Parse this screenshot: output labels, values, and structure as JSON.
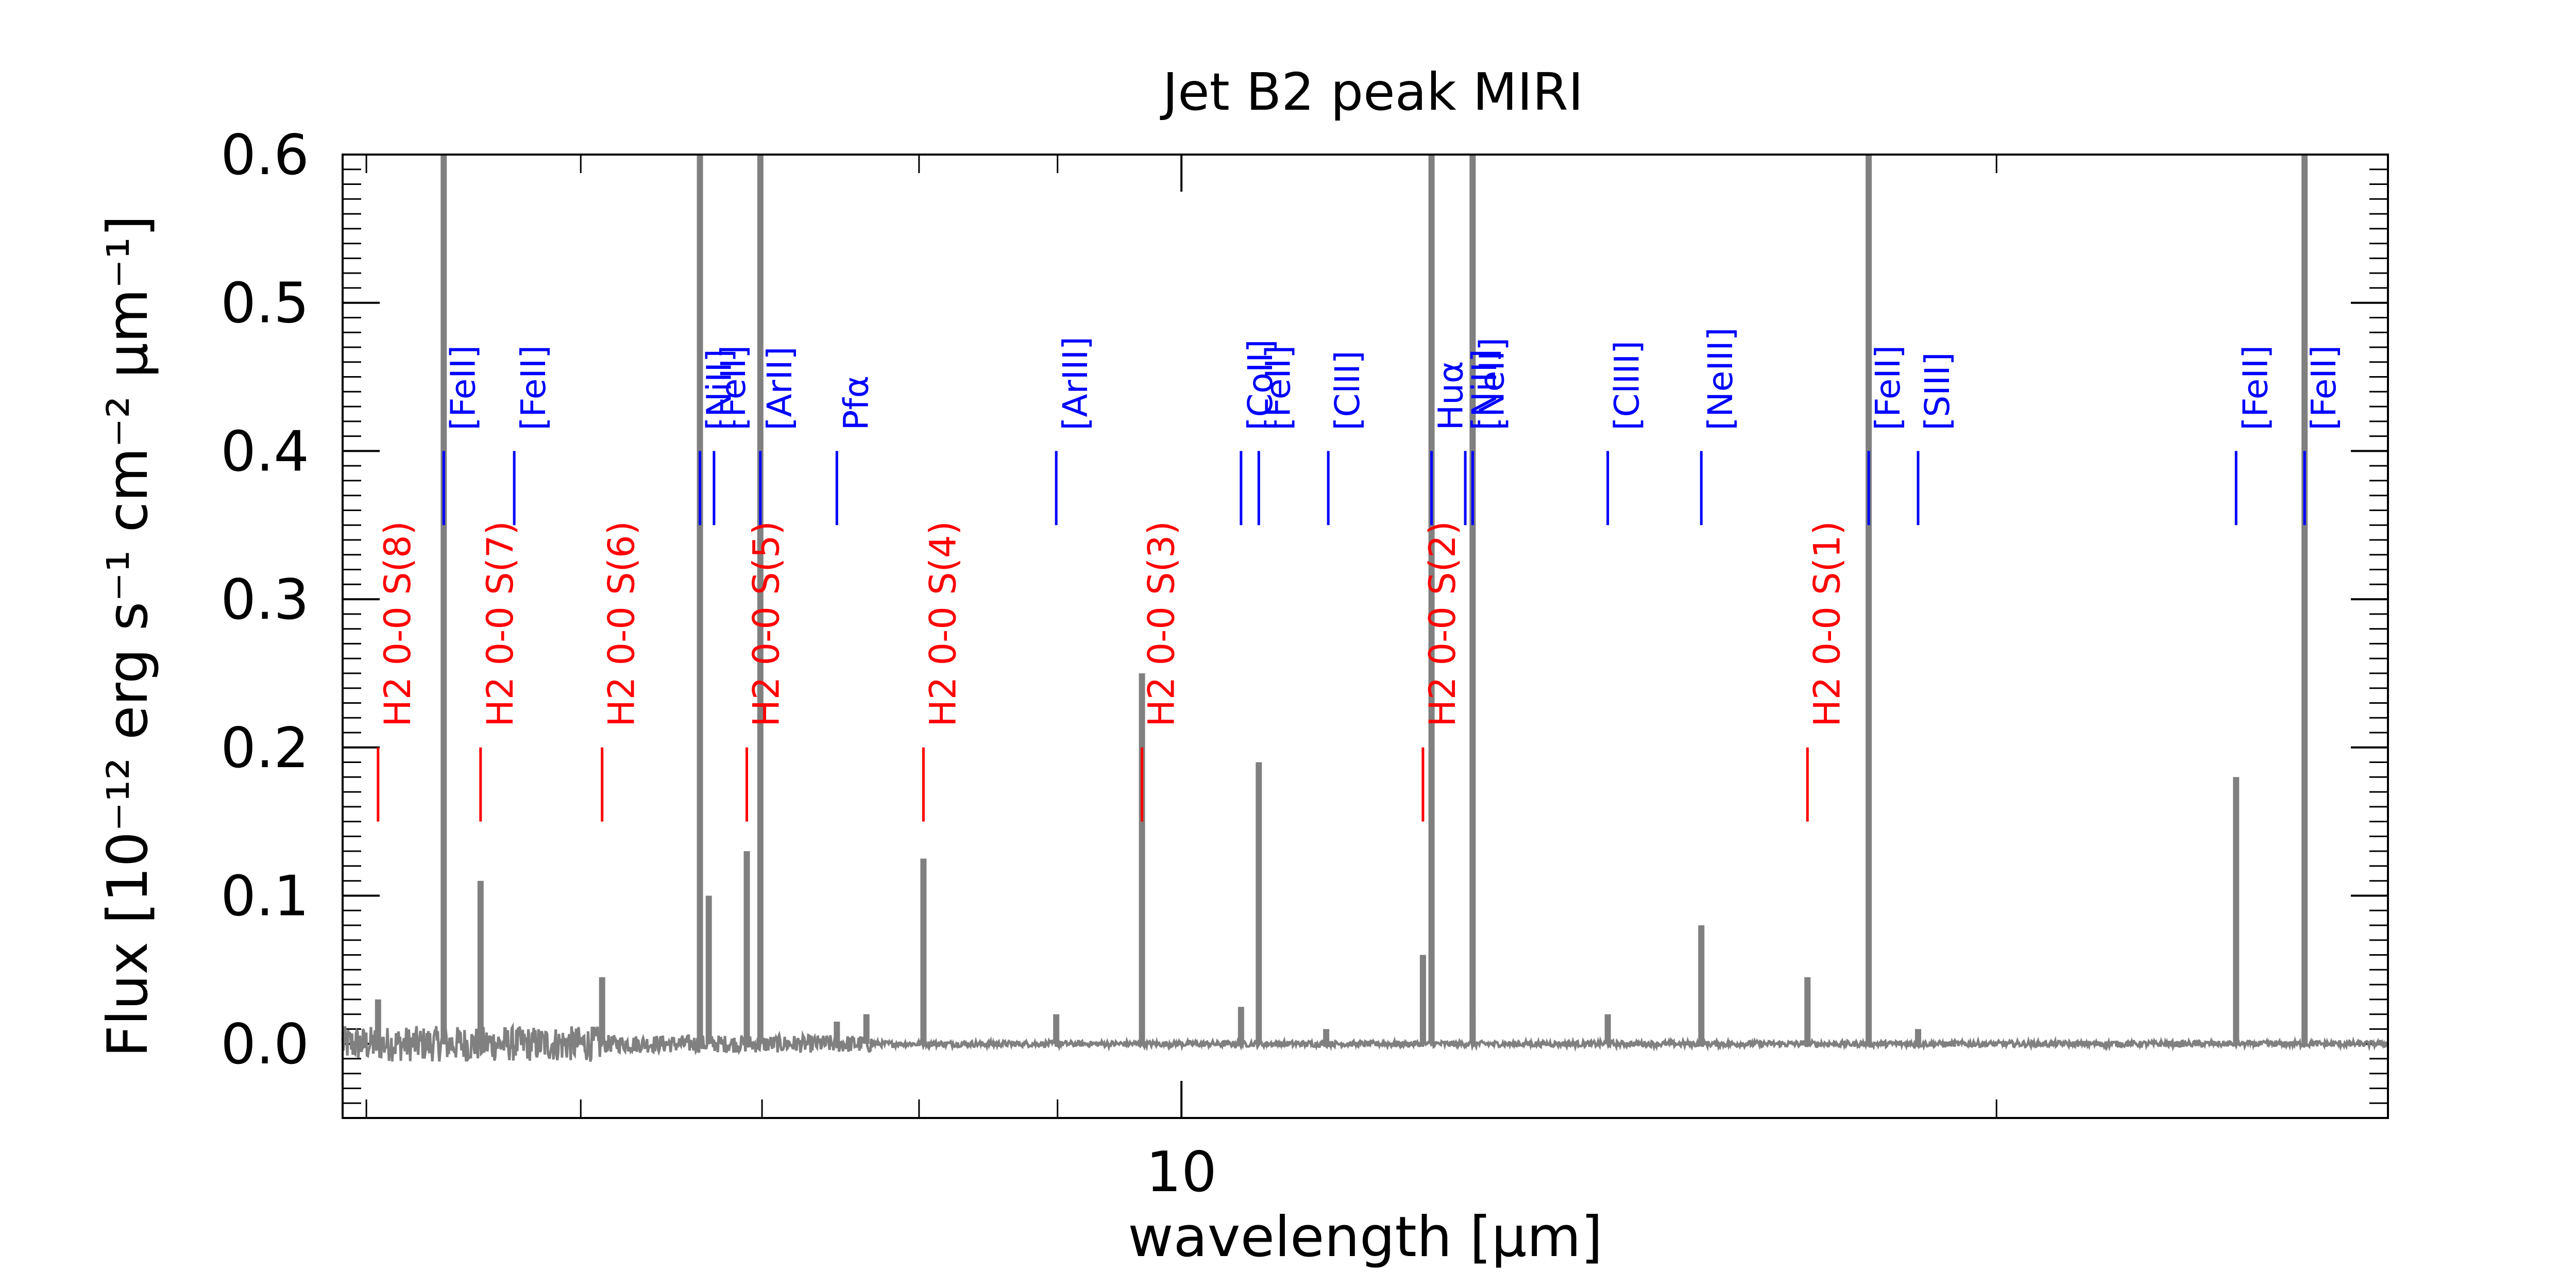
{
  "chart_data": {
    "type": "line",
    "title": "Jet B2 peak MIRI",
    "xlabel": "wavelength [μm]",
    "ylabel": "Flux [10⁻¹² erg s⁻¹ cm⁻² μm⁻¹]",
    "xscale": "log",
    "xlim": [
      4.9,
      27.9
    ],
    "ylim": [
      -0.05,
      0.6
    ],
    "grid": false,
    "x_ticks": [
      {
        "value": 10,
        "label": "10"
      }
    ],
    "y_ticks": [
      {
        "value": 0.0,
        "label": "0.0"
      },
      {
        "value": 0.1,
        "label": "0.1"
      },
      {
        "value": 0.2,
        "label": "0.2"
      },
      {
        "value": 0.3,
        "label": "0.3"
      },
      {
        "value": 0.4,
        "label": "0.4"
      },
      {
        "value": 0.5,
        "label": "0.5"
      },
      {
        "value": 0.6,
        "label": "0.6"
      }
    ],
    "series": [
      {
        "name": "spectrum",
        "color": "#808080",
        "baseline": 0.0,
        "noise": [
          {
            "x_from": 4.9,
            "x_to": 6.1,
            "amplitude": 0.012
          },
          {
            "x_from": 6.1,
            "x_to": 7.7,
            "amplitude": 0.006
          },
          {
            "x_from": 7.7,
            "x_to": 27.9,
            "amplitude": 0.002
          }
        ],
        "peaks": [
          {
            "x": 5.05,
            "y": 0.03
          },
          {
            "x": 5.34,
            "y": 0.6
          },
          {
            "x": 5.51,
            "y": 0.11
          },
          {
            "x": 6.11,
            "y": 0.045
          },
          {
            "x": 6.64,
            "y": 0.6
          },
          {
            "x": 6.69,
            "y": 0.1
          },
          {
            "x": 6.91,
            "y": 0.13
          },
          {
            "x": 6.99,
            "y": 0.6
          },
          {
            "x": 7.46,
            "y": 0.015
          },
          {
            "x": 7.65,
            "y": 0.02
          },
          {
            "x": 8.03,
            "y": 0.125
          },
          {
            "x": 8.99,
            "y": 0.02
          },
          {
            "x": 9.67,
            "y": 0.25
          },
          {
            "x": 10.52,
            "y": 0.025
          },
          {
            "x": 10.68,
            "y": 0.19
          },
          {
            "x": 11.31,
            "y": 0.01
          },
          {
            "x": 12.28,
            "y": 0.06
          },
          {
            "x": 12.37,
            "y": 0.6
          },
          {
            "x": 12.81,
            "y": 0.02
          },
          {
            "x": 12.81,
            "y": 0.6
          },
          {
            "x": 14.37,
            "y": 0.02
          },
          {
            "x": 15.56,
            "y": 0.08
          },
          {
            "x": 17.03,
            "y": 0.045
          },
          {
            "x": 17.94,
            "y": 0.6
          },
          {
            "x": 18.71,
            "y": 0.01
          },
          {
            "x": 24.52,
            "y": 0.18
          },
          {
            "x": 25.99,
            "y": 0.6
          }
        ]
      }
    ],
    "markers": {
      "atomic": {
        "color": "#0000ff",
        "y_range": [
          0.35,
          0.4
        ],
        "lines": [
          {
            "label": "[FeII]",
            "x": 5.34,
            "label_y": 0.4
          },
          {
            "label": "[FeII]",
            "x": 5.67,
            "label_y": 0.4
          },
          {
            "label": "[NiII]",
            "x": 6.64,
            "label_y": 0.4
          },
          {
            "label": "[FeII]",
            "x": 6.72,
            "label_y": 0.4
          },
          {
            "label": "[ArII]",
            "x": 6.99,
            "label_y": 0.4
          },
          {
            "label": "Pfα",
            "x": 7.46,
            "label_y": 0.4
          },
          {
            "label": "[ArIII]",
            "x": 8.99,
            "label_y": 0.4
          },
          {
            "label": "[CoII]",
            "x": 10.52,
            "label_y": 0.4
          },
          {
            "label": "[FeII]",
            "x": 10.68,
            "label_y": 0.4
          },
          {
            "label": "[ClII]",
            "x": 11.33,
            "label_y": 0.4
          },
          {
            "label": "Huα",
            "x": 12.37,
            "label_y": 0.4
          },
          {
            "label": "[NiII]",
            "x": 12.73,
            "label_y": 0.4
          },
          {
            "label": "[NeII]",
            "x": 12.81,
            "label_y": 0.4
          },
          {
            "label": "[ClIII]",
            "x": 14.37,
            "label_y": 0.4
          },
          {
            "label": "[NeIII]",
            "x": 15.56,
            "label_y": 0.4
          },
          {
            "label": "[FeII]",
            "x": 17.94,
            "label_y": 0.4
          },
          {
            "label": "[SIII]",
            "x": 18.71,
            "label_y": 0.4
          },
          {
            "label": "[FeII]",
            "x": 24.52,
            "label_y": 0.4
          },
          {
            "label": "[FeII]",
            "x": 25.99,
            "label_y": 0.4
          }
        ]
      },
      "molecular": {
        "color": "#ff0000",
        "y_range": [
          0.15,
          0.2
        ],
        "lines": [
          {
            "label": "H2 0-0 S(8)",
            "x": 5.05,
            "label_y": 0.2
          },
          {
            "label": "H2 0-0 S(7)",
            "x": 5.51,
            "label_y": 0.2
          },
          {
            "label": "H2 0-0 S(6)",
            "x": 6.11,
            "label_y": 0.2
          },
          {
            "label": "H2 0-0 S(5)",
            "x": 6.91,
            "label_y": 0.2
          },
          {
            "label": "H2 0-0 S(4)",
            "x": 8.03,
            "label_y": 0.2
          },
          {
            "label": "H2 0-0 S(3)",
            "x": 9.67,
            "label_y": 0.2
          },
          {
            "label": "H2 0-0 S(2)",
            "x": 12.28,
            "label_y": 0.2
          },
          {
            "label": "H2 0-0 S(1)",
            "x": 17.03,
            "label_y": 0.2
          }
        ]
      }
    }
  }
}
